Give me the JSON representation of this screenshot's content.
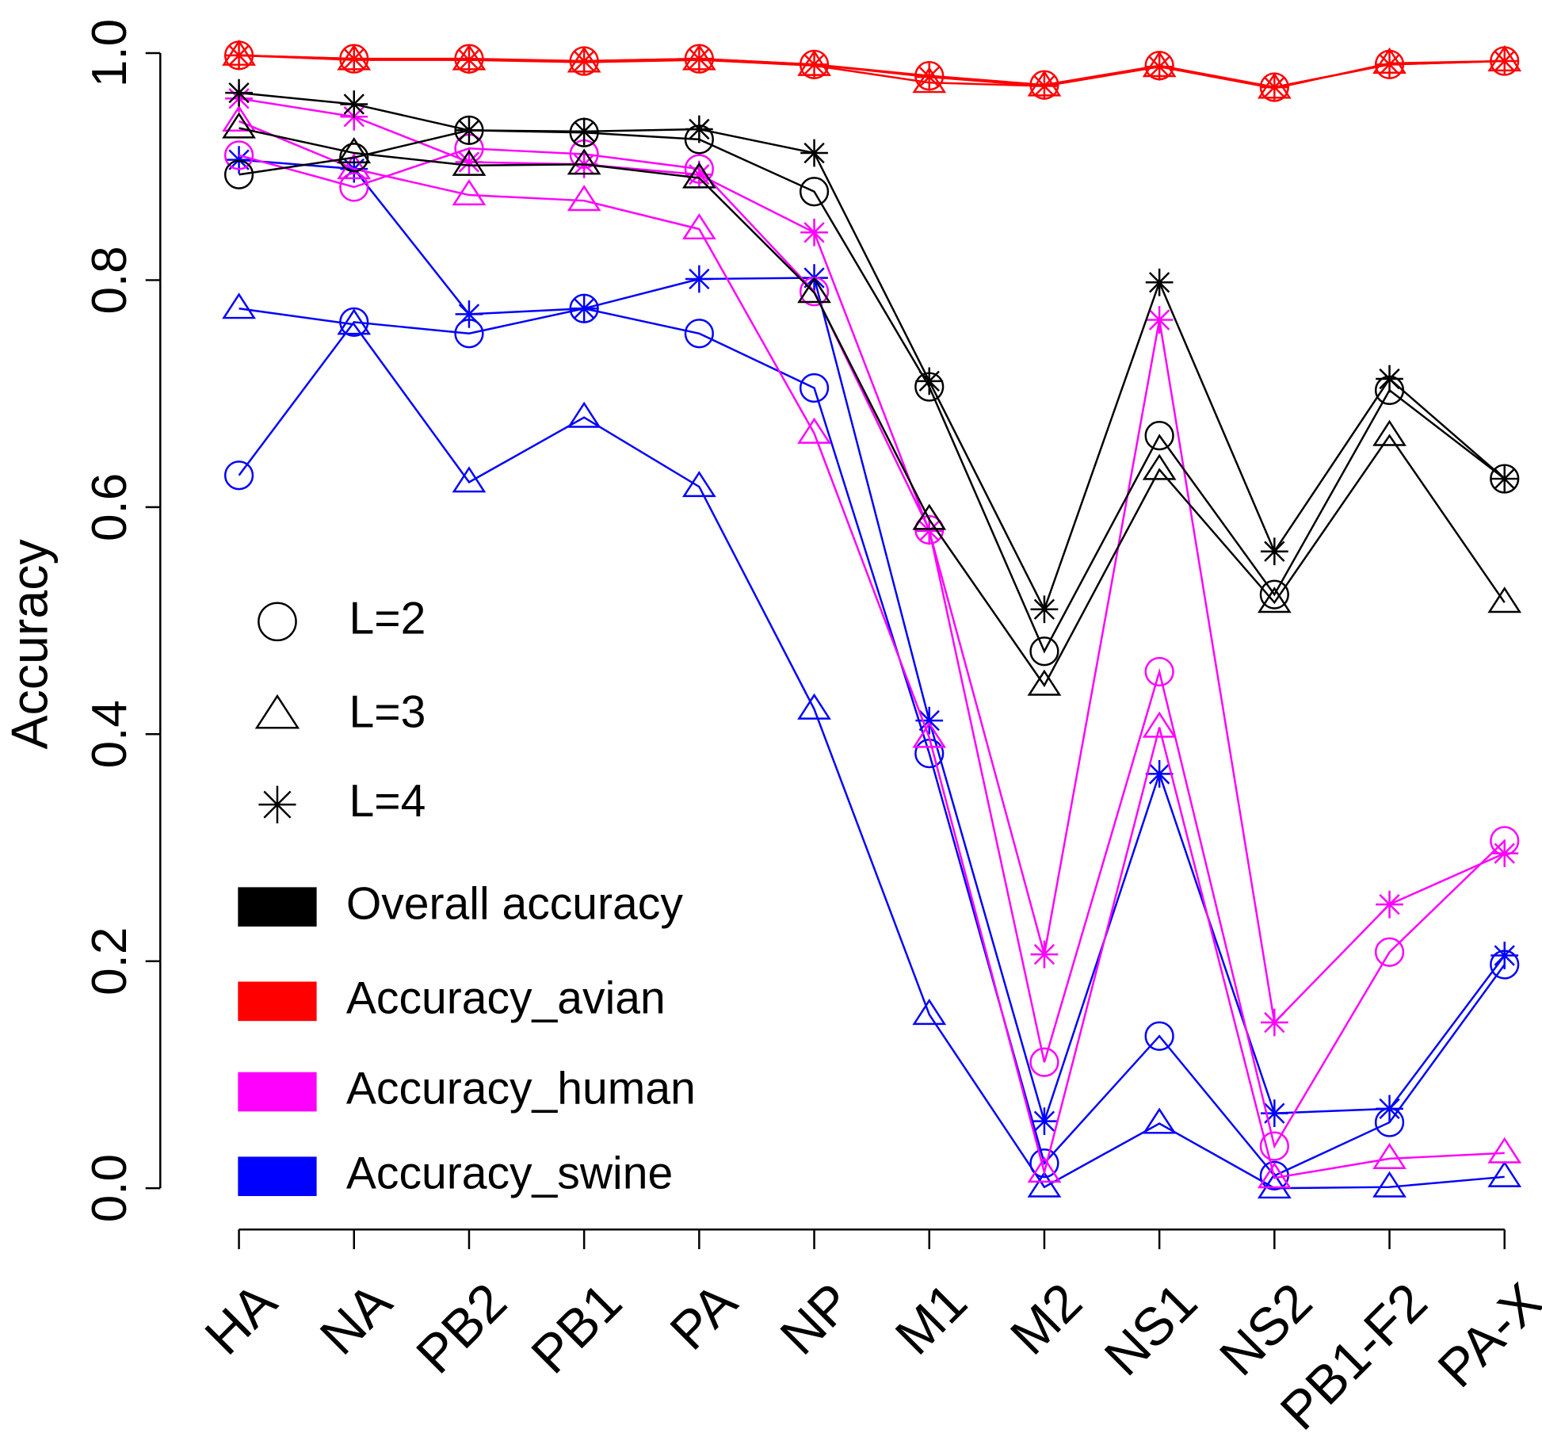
{
  "chart_data": {
    "type": "line",
    "y_label": "Accuracy",
    "categories": [
      "HA",
      "NA",
      "PB2",
      "PB1",
      "PA",
      "NP",
      "M1",
      "M2",
      "NS1",
      "NS2",
      "PB1-F2",
      "PA-X"
    ],
    "ylim": [
      0,
      1
    ],
    "yticks": [
      {
        "value": 0,
        "label": "0.0"
      },
      0.2,
      0.4,
      0.6,
      0.8,
      {
        "value": 1,
        "label": "1.0"
      }
    ],
    "marker_legend": [
      {
        "name": "L=2",
        "shape": "circle"
      },
      {
        "name": "L=3",
        "shape": "triangle"
      },
      {
        "name": "L=4",
        "shape": "star"
      }
    ],
    "groups": [
      {
        "name": "Overall accuracy",
        "color": "#000000",
        "series": [
          {
            "values": [
              0.893,
              0.908,
              0.932,
              0.93,
              0.924,
              0.878,
              0.706,
              0.473,
              0.663,
              0.523,
              0.703,
              0.625
            ]
          },
          {
            "values": [
              0.934,
              0.912,
              0.901,
              0.902,
              0.89,
              0.789,
              0.589,
              0.443,
              0.633,
              0.516,
              0.663,
              0.516
            ]
          },
          {
            "values": [
              0.965,
              0.955,
              0.932,
              0.931,
              0.933,
              0.912,
              0.711,
              0.51,
              0.798,
              0.561,
              0.713,
              0.625
            ]
          }
        ]
      },
      {
        "name": "Accuracy_avian",
        "color": "#ff0000",
        "series": [
          {
            "values": [
              0.998,
              0.995,
              0.995,
              0.993,
              0.995,
              0.99,
              0.98,
              0.972,
              0.989,
              0.97,
              0.99,
              0.993
            ]
          },
          {
            "values": [
              0.998,
              0.994,
              0.994,
              0.992,
              0.994,
              0.989,
              0.974,
              0.971,
              0.988,
              0.969,
              0.991,
              0.993
            ]
          },
          {
            "values": [
              0.998,
              0.995,
              0.994,
              0.993,
              0.995,
              0.99,
              0.979,
              0.971,
              0.988,
              0.97,
              0.99,
              0.993
            ]
          }
        ]
      },
      {
        "name": "Accuracy_human",
        "color": "#ff00ff",
        "series": [
          {
            "values": [
              0.91,
              0.882,
              0.916,
              0.911,
              0.898,
              0.79,
              0.58,
              0.111,
              0.455,
              0.037,
              0.208,
              0.306
            ]
          },
          {
            "values": [
              0.94,
              0.898,
              0.875,
              0.87,
              0.845,
              0.665,
              0.397,
              0.014,
              0.406,
              0.009,
              0.026,
              0.031
            ]
          },
          {
            "values": [
              0.96,
              0.944,
              0.904,
              0.902,
              0.893,
              0.842,
              0.579,
              0.206,
              0.765,
              0.146,
              0.25,
              0.295
            ]
          }
        ]
      },
      {
        "name": "Accuracy_swine",
        "color": "#0000ff",
        "series": [
          {
            "values": [
              0.628,
              0.763,
              0.753,
              0.775,
              0.753,
              0.705,
              0.383,
              0.022,
              0.134,
              0.011,
              0.058,
              0.197
            ]
          },
          {
            "values": [
              0.775,
              0.761,
              0.622,
              0.679,
              0.618,
              0.422,
              0.153,
              0.001,
              0.057,
              0.0,
              0.001,
              0.01
            ]
          },
          {
            "values": [
              0.906,
              0.898,
              0.77,
              0.775,
              0.801,
              0.802,
              0.412,
              0.059,
              0.365,
              0.066,
              0.07,
              0.205
            ]
          }
        ]
      }
    ]
  }
}
